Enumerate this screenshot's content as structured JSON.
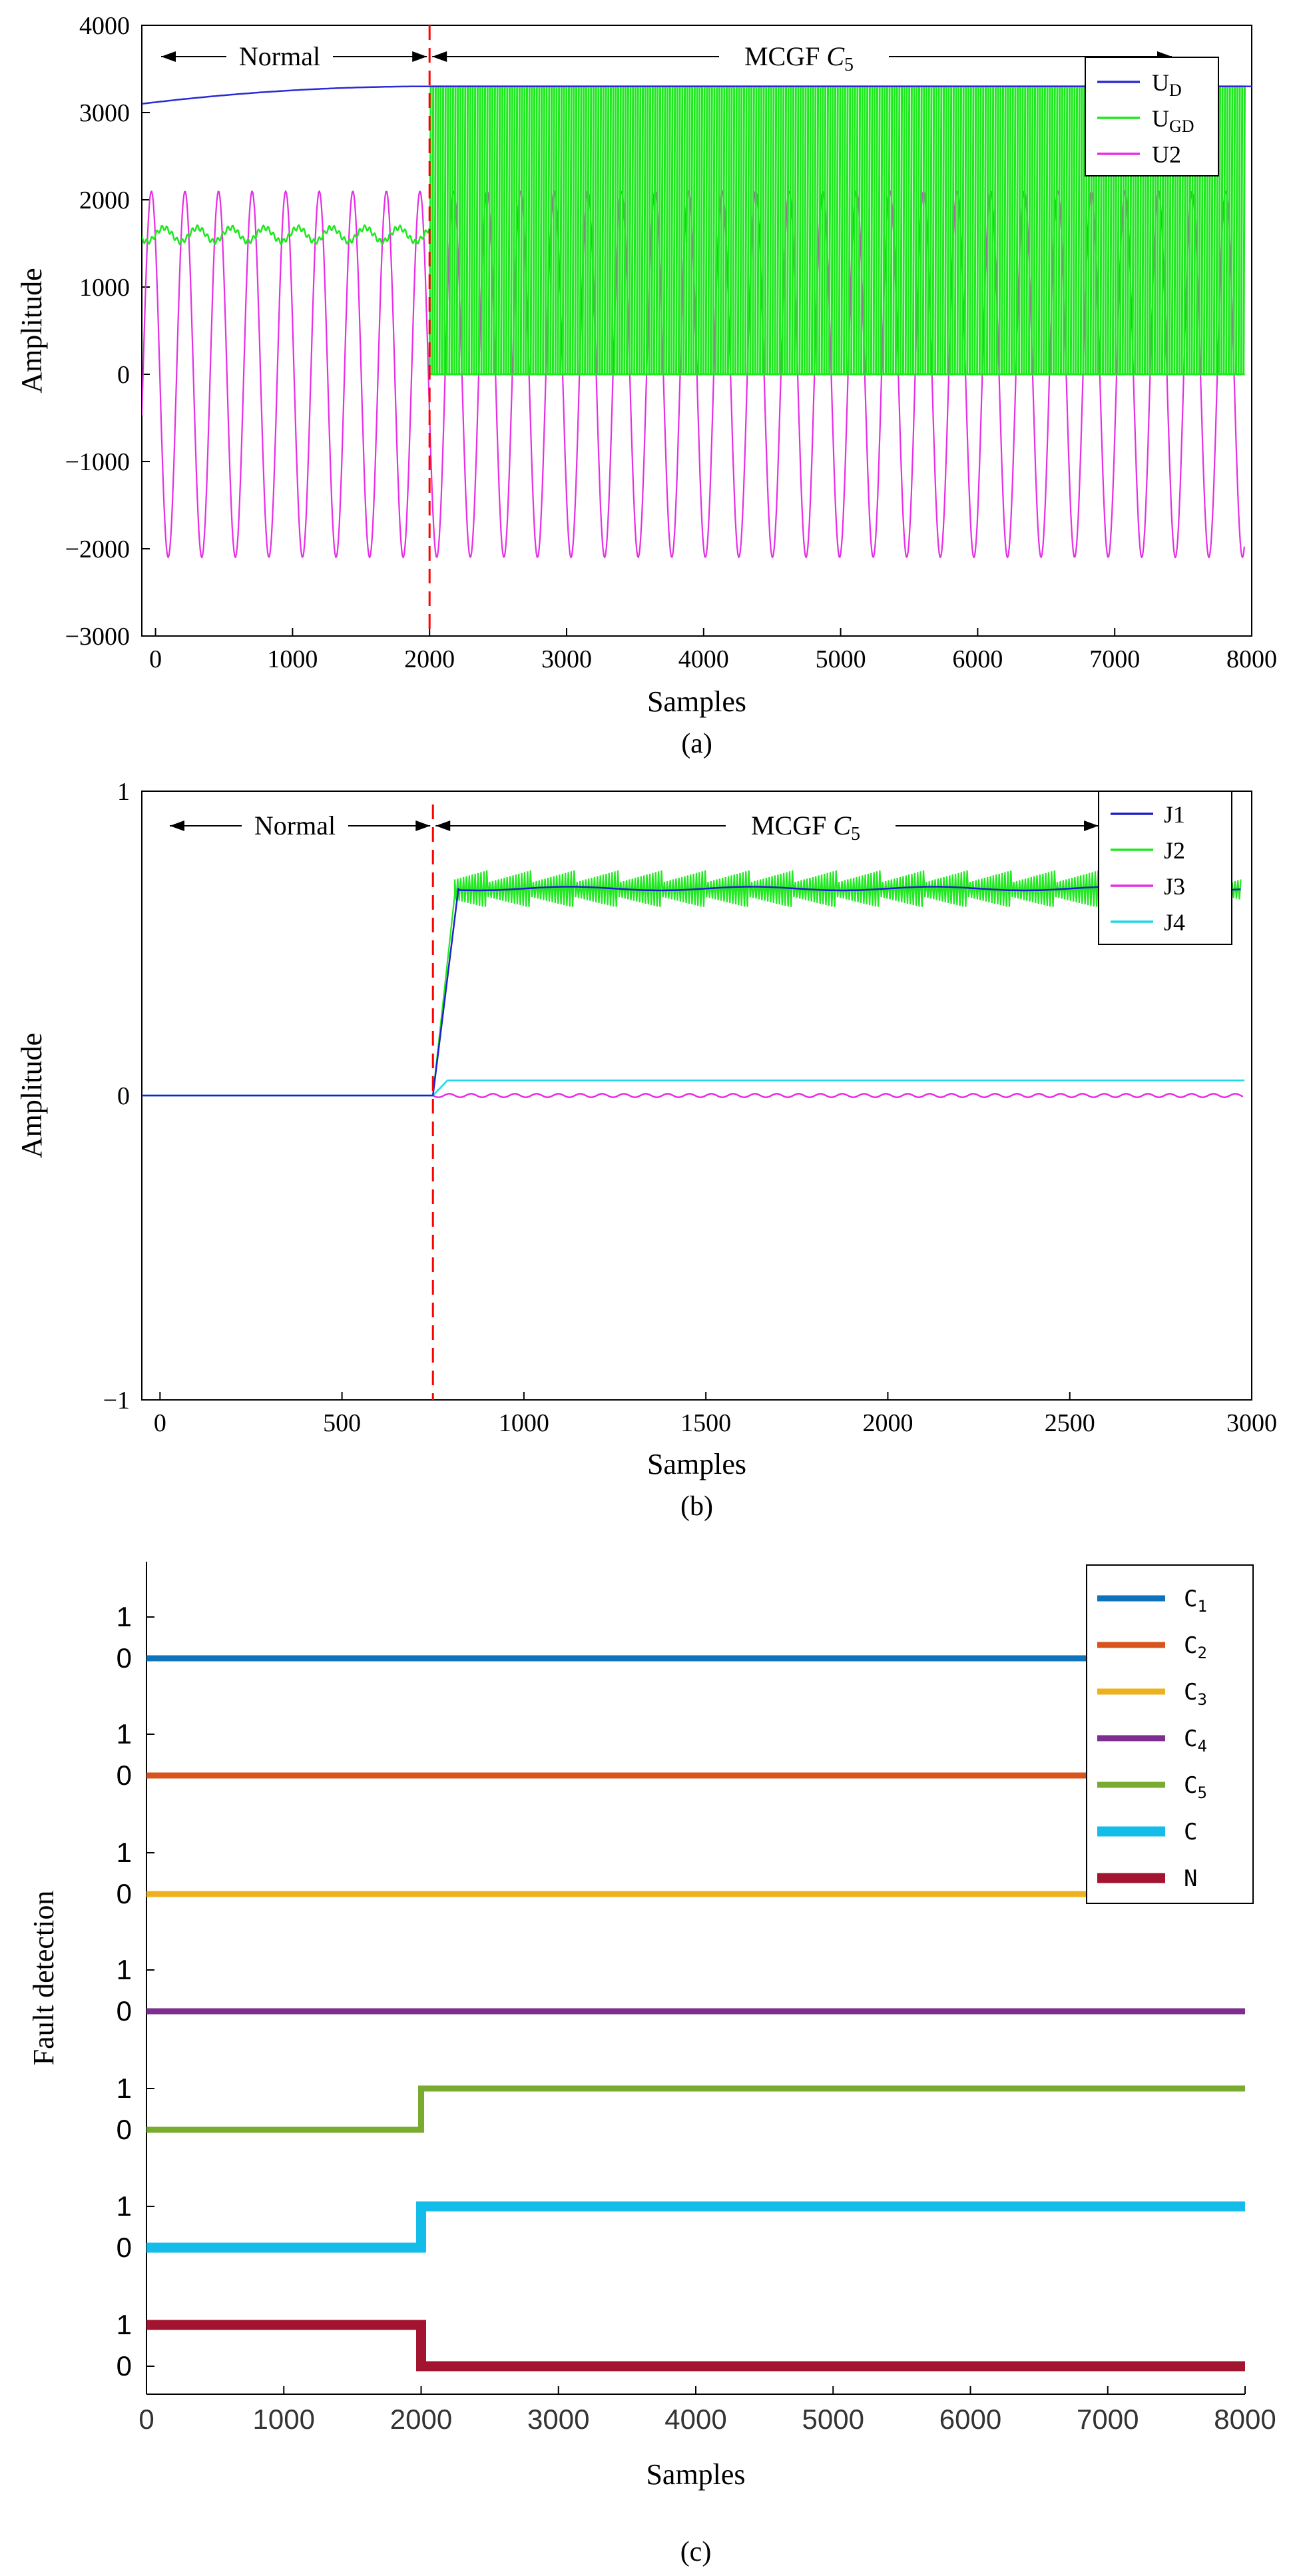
{
  "chart_data": [
    {
      "type": "line",
      "panel_label": "(a)",
      "xlabel": "Samples",
      "ylabel": "Amplitude",
      "xlim": [
        -100,
        8000
      ],
      "ylim": [
        -3000,
        4000
      ],
      "xticks": [
        0,
        1000,
        2000,
        3000,
        4000,
        5000,
        6000,
        7000,
        8000
      ],
      "xtick_labels": [
        "0",
        "1000",
        "2000",
        "3000",
        "4000",
        "5000",
        "6000",
        "7000",
        "8000"
      ],
      "yticks": [
        -3000,
        -2000,
        -1000,
        0,
        1000,
        2000,
        3000,
        4000
      ],
      "ytick_labels": [
        "−3000",
        "−2000",
        "−1000",
        "0",
        "1000",
        "2000",
        "3000",
        "4000"
      ],
      "fault_line_x": 2000,
      "annotations": {
        "normal": "Normal",
        "fault_prefix": "MCGF ",
        "fault_italic": "C",
        "fault_sub": "5"
      },
      "legend": [
        {
          "name": "U",
          "sub": "D",
          "color": "#2b2bd6"
        },
        {
          "name": "U",
          "sub": "GD",
          "color": "#1ee81e"
        },
        {
          "name": "U2",
          "sub": "",
          "color": "#e62ee6"
        }
      ],
      "series": [
        {
          "name": "UD",
          "color": "#2b2bd6",
          "description": "rises from 3100 at sample 0 to 3300 at sample 2000, then stays flat ~3300"
        },
        {
          "name": "UGD",
          "color": "#1ee81e",
          "normal_mean": 1600,
          "normal_ripple": 80,
          "fault_range": [
            0,
            3300
          ]
        },
        {
          "name": "U2",
          "color": "#e62ee6",
          "amplitude": 2100,
          "period": 245
        }
      ]
    },
    {
      "type": "line",
      "panel_label": "(b)",
      "xlabel": "Samples",
      "ylabel": "Amplitude",
      "xlim": [
        -50,
        3000
      ],
      "ylim": [
        -1,
        1
      ],
      "xticks": [
        0,
        500,
        1000,
        1500,
        2000,
        2500,
        3000
      ],
      "xtick_labels": [
        "0",
        "500",
        "1000",
        "1500",
        "2000",
        "2500",
        "3000"
      ],
      "yticks": [
        -1,
        0,
        1
      ],
      "ytick_labels": [
        "−1",
        "0",
        "1"
      ],
      "fault_line_x": 750,
      "annotations": {
        "normal": "Normal",
        "fault_prefix": "MCGF ",
        "fault_italic": "C",
        "fault_sub": "5"
      },
      "legend": [
        {
          "name": "J1",
          "color": "#2020c8"
        },
        {
          "name": "J2",
          "color": "#22e822"
        },
        {
          "name": "J3",
          "color": "#e62ee6"
        },
        {
          "name": "J4",
          "color": "#20d8e8"
        }
      ],
      "series": [
        {
          "name": "J1",
          "color": "#2020c8",
          "pre_fault": 0,
          "post_fault": 0.68
        },
        {
          "name": "J2",
          "color": "#22e822",
          "pre_fault": 0,
          "post_fault_range": [
            0.62,
            0.74
          ]
        },
        {
          "name": "J3",
          "color": "#e62ee6",
          "pre_fault": 0,
          "post_fault": 0
        },
        {
          "name": "J4",
          "color": "#20d8e8",
          "pre_fault": 0,
          "post_fault": 0.05
        }
      ]
    },
    {
      "type": "line",
      "panel_label": "(c)",
      "xlabel": "Samples",
      "ylabel": "Fault detection",
      "xlim": [
        0,
        8000
      ],
      "xticks": [
        0,
        1000,
        2000,
        3000,
        4000,
        5000,
        6000,
        7000,
        8000
      ],
      "xtick_labels": [
        "0",
        "1000",
        "2000",
        "3000",
        "4000",
        "5000",
        "6000",
        "7000",
        "8000"
      ],
      "row_tick_labels": [
        "1",
        "0"
      ],
      "legend": [
        {
          "name": "C",
          "sub": "1",
          "color": "#0e72bd"
        },
        {
          "name": "C",
          "sub": "2",
          "color": "#d9531d"
        },
        {
          "name": "C",
          "sub": "3",
          "color": "#eeb11e"
        },
        {
          "name": "C",
          "sub": "4",
          "color": "#7d2e8e"
        },
        {
          "name": "C",
          "sub": "5",
          "color": "#78ab2e"
        },
        {
          "name": "C",
          "sub": "",
          "color": "#14bde9"
        },
        {
          "name": "N",
          "sub": "",
          "color": "#a2142f"
        }
      ],
      "series": [
        {
          "name": "C1",
          "color": "#0e72bd",
          "values_before_2000": 0,
          "values_after_2000": 0
        },
        {
          "name": "C2",
          "color": "#d9531d",
          "values_before_2000": 0,
          "values_after_2000": 0
        },
        {
          "name": "C3",
          "color": "#eeb11e",
          "values_before_2000": 0,
          "values_after_2000": 0
        },
        {
          "name": "C4",
          "color": "#7d2e8e",
          "values_before_2000": 0,
          "values_after_2000": 0
        },
        {
          "name": "C5",
          "color": "#78ab2e",
          "values_before_2000": 0,
          "values_after_2000": 1
        },
        {
          "name": "C",
          "color": "#14bde9",
          "values_before_2000": 0,
          "values_after_2000": 1
        },
        {
          "name": "N",
          "color": "#a2142f",
          "values_before_2000": 1,
          "values_after_2000": 0
        }
      ]
    }
  ]
}
